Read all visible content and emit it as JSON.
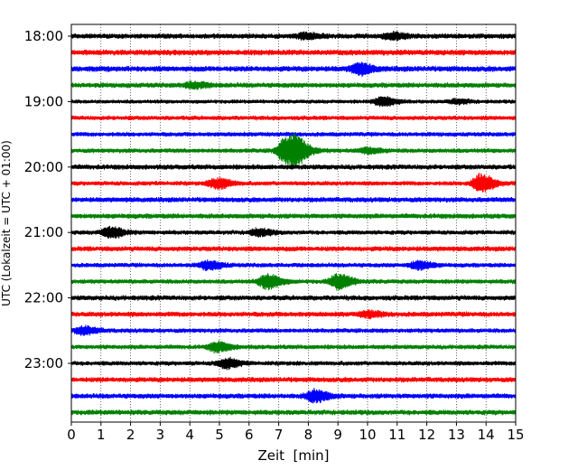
{
  "chart_data": {
    "type": "line",
    "title": "",
    "xlabel": "Zeit  [min]",
    "ylabel": "UTC (Lokalzeit = UTC + 01:00)",
    "xlim": [
      0,
      15
    ],
    "x_ticks": [
      "0",
      "1",
      "2",
      "3",
      "4",
      "5",
      "6",
      "7",
      "8",
      "9",
      "10",
      "11",
      "12",
      "13",
      "14",
      "15"
    ],
    "y_tick_labels": [
      "18:00",
      "19:00",
      "20:00",
      "21:00",
      "22:00",
      "23:00"
    ],
    "trace_start": "18:00",
    "trace_interval_min": 15,
    "grid": "vertical-dotted",
    "trace_colors": [
      "#000000",
      "#ff0000",
      "#0000ff",
      "#008000"
    ],
    "traces": [
      {
        "start": "18:00",
        "amplitude": 0.45,
        "events": [
          {
            "t": 7.9,
            "a": 0.55
          },
          {
            "t": 10.8,
            "a": 0.6
          }
        ]
      },
      {
        "start": "18:15",
        "amplitude": 0.5,
        "events": []
      },
      {
        "start": "18:30",
        "amplitude": 0.5,
        "events": [
          {
            "t": 9.7,
            "a": 1.0
          }
        ]
      },
      {
        "start": "18:45",
        "amplitude": 0.45,
        "events": [
          {
            "t": 4.1,
            "a": 0.55
          }
        ]
      },
      {
        "start": "19:00",
        "amplitude": 0.35,
        "events": [
          {
            "t": 10.5,
            "a": 0.9
          },
          {
            "t": 13.0,
            "a": 0.4
          }
        ]
      },
      {
        "start": "19:15",
        "amplitude": 0.4,
        "events": []
      },
      {
        "start": "19:30",
        "amplitude": 0.4,
        "events": []
      },
      {
        "start": "19:45",
        "amplitude": 0.4,
        "events": [
          {
            "t": 7.2,
            "a": 2.2
          },
          {
            "t": 7.6,
            "a": 2.0
          },
          {
            "t": 10.0,
            "a": 0.5
          }
        ]
      },
      {
        "start": "20:00",
        "amplitude": 0.45,
        "events": []
      },
      {
        "start": "20:15",
        "amplitude": 0.4,
        "events": [
          {
            "t": 4.9,
            "a": 1.0
          },
          {
            "t": 13.8,
            "a": 1.7
          }
        ]
      },
      {
        "start": "20:30",
        "amplitude": 0.45,
        "events": []
      },
      {
        "start": "20:45",
        "amplitude": 0.45,
        "events": []
      },
      {
        "start": "21:00",
        "amplitude": 0.4,
        "events": [
          {
            "t": 1.3,
            "a": 1.0
          },
          {
            "t": 6.3,
            "a": 0.6
          }
        ]
      },
      {
        "start": "21:15",
        "amplitude": 0.45,
        "events": []
      },
      {
        "start": "21:30",
        "amplitude": 0.4,
        "events": [
          {
            "t": 4.6,
            "a": 0.8
          },
          {
            "t": 11.7,
            "a": 0.8
          }
        ]
      },
      {
        "start": "21:45",
        "amplitude": 0.4,
        "events": [
          {
            "t": 6.6,
            "a": 1.4
          },
          {
            "t": 9.0,
            "a": 1.4
          }
        ]
      },
      {
        "start": "22:00",
        "amplitude": 0.45,
        "events": []
      },
      {
        "start": "22:15",
        "amplitude": 0.45,
        "events": [
          {
            "t": 10.0,
            "a": 0.5
          }
        ]
      },
      {
        "start": "22:30",
        "amplitude": 0.4,
        "events": [
          {
            "t": 0.4,
            "a": 0.7
          }
        ]
      },
      {
        "start": "22:45",
        "amplitude": 0.4,
        "events": [
          {
            "t": 4.9,
            "a": 0.9
          }
        ]
      },
      {
        "start": "23:00",
        "amplitude": 0.4,
        "events": [
          {
            "t": 5.2,
            "a": 0.9
          }
        ]
      },
      {
        "start": "23:15",
        "amplitude": 0.45,
        "events": []
      },
      {
        "start": "23:30",
        "amplitude": 0.45,
        "events": [
          {
            "t": 8.2,
            "a": 1.1
          }
        ]
      },
      {
        "start": "23:45",
        "amplitude": 0.45,
        "events": []
      }
    ]
  }
}
